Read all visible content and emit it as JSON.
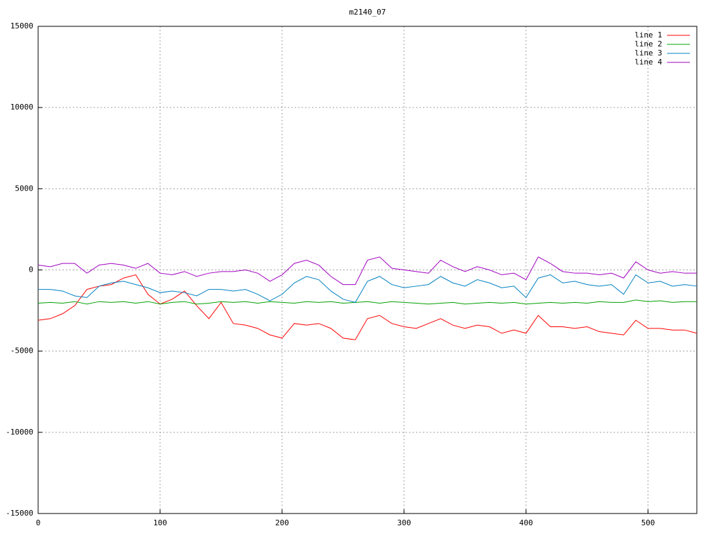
{
  "chart_data": {
    "type": "line",
    "title": "m2140_07",
    "x": [
      0,
      10,
      20,
      30,
      40,
      50,
      60,
      70,
      80,
      90,
      100,
      110,
      120,
      130,
      140,
      150,
      160,
      170,
      180,
      190,
      200,
      210,
      220,
      230,
      240,
      250,
      260,
      270,
      280,
      290,
      300,
      310,
      320,
      330,
      340,
      350,
      360,
      370,
      380,
      390,
      400,
      410,
      420,
      430,
      440,
      450,
      460,
      470,
      480,
      490,
      500,
      510,
      520,
      530,
      540
    ],
    "series": [
      {
        "name": "line 1",
        "color": "#ff0000",
        "values": [
          -3100,
          -3000,
          -2700,
          -2200,
          -1200,
          -1000,
          -900,
          -500,
          -300,
          -1500,
          -2100,
          -1800,
          -1300,
          -2200,
          -3000,
          -2000,
          -3300,
          -3400,
          -3600,
          -4000,
          -4200,
          -3300,
          -3400,
          -3300,
          -3600,
          -4200,
          -4300,
          -3000,
          -2800,
          -3300,
          -3500,
          -3600,
          -3300,
          -3000,
          -3400,
          -3600,
          -3400,
          -3500,
          -3900,
          -3700,
          -3900,
          -2800,
          -3500,
          -3500,
          -3600,
          -3500,
          -3800,
          -3900,
          -4000,
          -3100,
          -3600,
          -3600,
          -3700,
          -3700,
          -3900
        ]
      },
      {
        "name": "line 2",
        "color": "#00a000",
        "values": [
          -2050,
          -2000,
          -2050,
          -1950,
          -2100,
          -1950,
          -2000,
          -1950,
          -2050,
          -1950,
          -2100,
          -2000,
          -1950,
          -2100,
          -2050,
          -1950,
          -2000,
          -1950,
          -2050,
          -1950,
          -2000,
          -2050,
          -1950,
          -2000,
          -1950,
          -2050,
          -2000,
          -1950,
          -2050,
          -1950,
          -2000,
          -2050,
          -2100,
          -2050,
          -2000,
          -2100,
          -2050,
          -2000,
          -2050,
          -2000,
          -2100,
          -2050,
          -2000,
          -2050,
          -2000,
          -2050,
          -1950,
          -2000,
          -2000,
          -1850,
          -1950,
          -1900,
          -2000,
          -1950,
          -1950
        ]
      },
      {
        "name": "line 3",
        "color": "#0080c0",
        "values": [
          -1200,
          -1200,
          -1300,
          -1600,
          -1700,
          -1000,
          -800,
          -700,
          -900,
          -1100,
          -1400,
          -1300,
          -1400,
          -1600,
          -1200,
          -1200,
          -1300,
          -1200,
          -1500,
          -1900,
          -1500,
          -800,
          -400,
          -600,
          -1300,
          -1800,
          -2000,
          -700,
          -400,
          -900,
          -1100,
          -1000,
          -900,
          -400,
          -800,
          -1000,
          -600,
          -800,
          -1100,
          -1000,
          -1700,
          -500,
          -300,
          -800,
          -700,
          -900,
          -1000,
          -900,
          -1500,
          -300,
          -800,
          -700,
          -1000,
          -900,
          -1000
        ]
      },
      {
        "name": "line 4",
        "color": "#a000c0",
        "values": [
          300,
          200,
          400,
          400,
          -200,
          300,
          400,
          300,
          100,
          400,
          -200,
          -300,
          -100,
          -400,
          -200,
          -100,
          -100,
          0,
          -200,
          -700,
          -300,
          400,
          600,
          300,
          -400,
          -900,
          -900,
          600,
          800,
          100,
          0,
          -100,
          -200,
          600,
          200,
          -100,
          200,
          0,
          -300,
          -200,
          -600,
          800,
          400,
          -100,
          -200,
          -200,
          -300,
          -200,
          -500,
          500,
          0,
          -200,
          -100,
          -200,
          -200
        ]
      }
    ],
    "xlim": [
      0,
      540
    ],
    "ylim": [
      -15000,
      15000
    ],
    "xticks": [
      0,
      100,
      200,
      300,
      400,
      500
    ],
    "yticks": [
      -15000,
      -10000,
      -5000,
      0,
      5000,
      10000,
      15000
    ],
    "grid": true,
    "legend": "top-right"
  }
}
